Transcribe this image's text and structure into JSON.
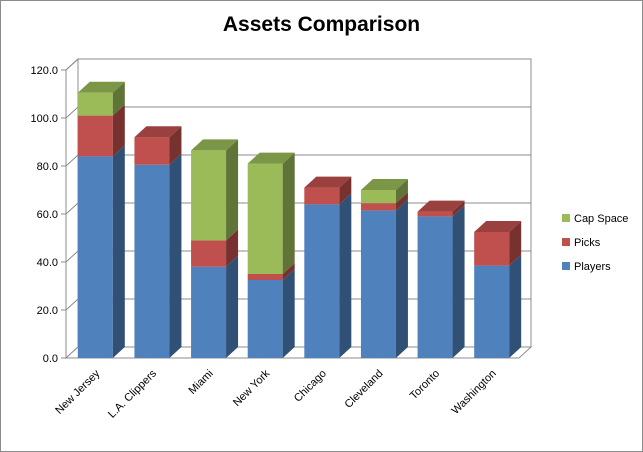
{
  "chart_data": {
    "type": "bar",
    "stacked": true,
    "three_d": true,
    "title": "Assets Comparison",
    "categories": [
      "New Jersey",
      "L.A. Clippers",
      "Miami",
      "New York",
      "Chicago",
      "Cleveland",
      "Toronto",
      "Washington"
    ],
    "series": [
      {
        "name": "Players",
        "color": "#4f81bd",
        "values": [
          84,
          80.5,
          38,
          32.5,
          64,
          61.5,
          59,
          38.5
        ]
      },
      {
        "name": "Picks",
        "color": "#c0504d",
        "values": [
          17,
          11.5,
          11,
          2.5,
          7,
          3,
          2,
          14
        ]
      },
      {
        "name": "Cap Space",
        "color": "#9bbb59",
        "values": [
          9.5,
          0,
          37.5,
          46,
          0,
          5.5,
          0,
          0
        ]
      }
    ],
    "y_ticks": [
      "0.0",
      "20.0",
      "40.0",
      "60.0",
      "80.0",
      "100.0",
      "120.0"
    ],
    "ylim": [
      0,
      120
    ],
    "grid": true,
    "legend_position": "right"
  }
}
